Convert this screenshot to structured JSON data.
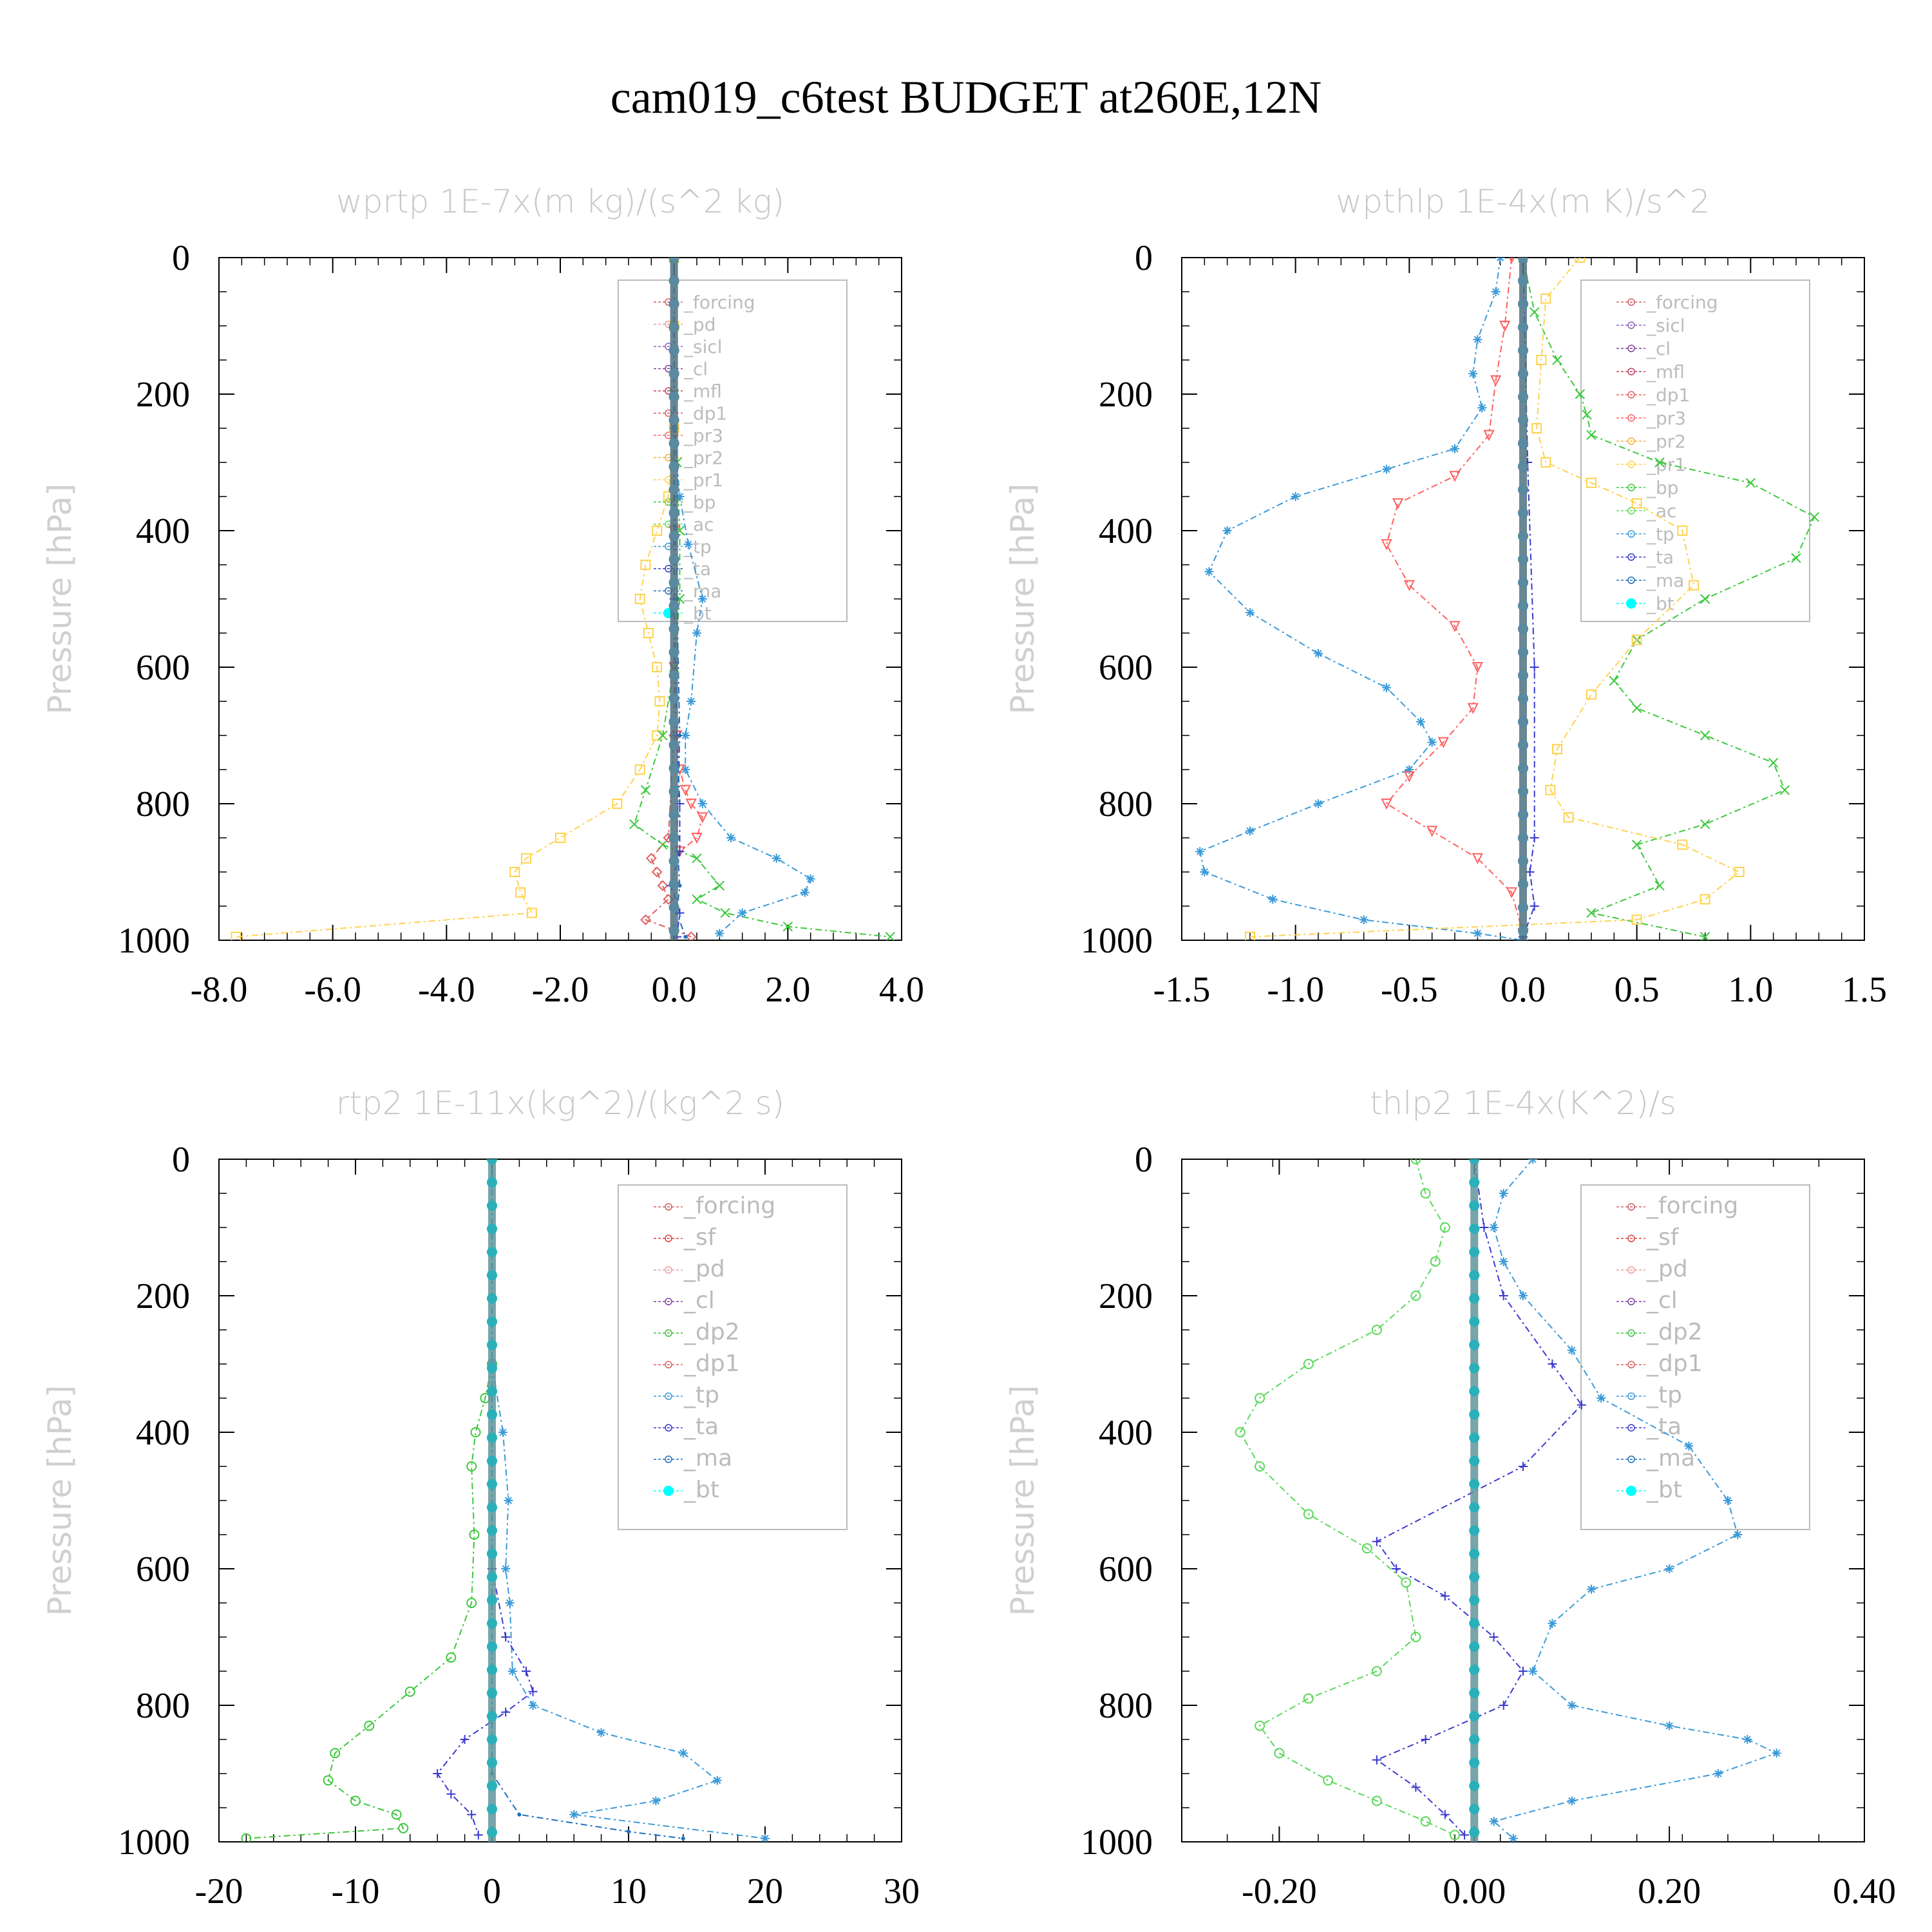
{
  "figure_title": "cam019_c6test  BUDGET at260E,12N",
  "chart_data": [
    {
      "type": "line",
      "title": "wprtp  1E-7x(m kg)/(s^2 kg)",
      "ylabel": "Pressure [hPa]",
      "xlim": [
        -8,
        4
      ],
      "ylim": [
        1000,
        0
      ],
      "xticks": [
        "-8.0",
        "-6.0",
        "-4.0",
        "-2.0",
        "0.0",
        "2.0",
        "4.0"
      ],
      "xtick_values": [
        -8,
        -6,
        -4,
        -2,
        0,
        2,
        4
      ],
      "yticks": [
        "0",
        "200",
        "400",
        "600",
        "800",
        "1000"
      ],
      "legend": [
        "_forcing",
        "_pd",
        "_sicl",
        "_cl",
        "_mfl",
        "_dp1",
        "_pr3",
        "_pr2",
        "_pr1",
        "_bp",
        "_ac",
        "_tp",
        "_ta",
        "_ma",
        "_bt"
      ],
      "series": [
        {
          "name": "_pr1",
          "color": "#ffd24d",
          "marker": "square",
          "x": [
            0,
            0,
            0,
            -0.1,
            -0.3,
            -0.5,
            -0.6,
            -0.45,
            -0.3,
            -0.25,
            -0.3,
            -0.6,
            -1.0,
            -2.0,
            -2.6,
            -2.8,
            -2.7,
            -2.5,
            -7.7
          ],
          "y": [
            0,
            100,
            250,
            350,
            400,
            450,
            500,
            550,
            600,
            650,
            700,
            750,
            800,
            850,
            880,
            900,
            930,
            960,
            995
          ]
        },
        {
          "name": "_bp",
          "color": "#3cc83c",
          "marker": "x",
          "x": [
            0,
            0,
            0.05,
            0.1,
            0.1,
            0,
            -0.2,
            -0.5,
            -0.7,
            -0.2,
            0.4,
            0.8,
            0.4,
            0.9,
            2.0,
            3.8
          ],
          "y": [
            0,
            200,
            300,
            400,
            500,
            600,
            700,
            780,
            830,
            860,
            880,
            920,
            940,
            960,
            980,
            995
          ]
        },
        {
          "name": "_tp",
          "color": "#3a9ad8",
          "marker": "star",
          "x": [
            0,
            0,
            0.1,
            0.25,
            0.5,
            0.4,
            0.3,
            0.2,
            0.2,
            0.5,
            1.0,
            1.8,
            2.4,
            2.3,
            1.2,
            0.8
          ],
          "y": [
            0,
            250,
            350,
            420,
            500,
            550,
            650,
            700,
            750,
            800,
            850,
            880,
            910,
            930,
            960,
            990
          ]
        },
        {
          "name": "_pr3",
          "color": "#ff6060",
          "marker": "triangle-down",
          "x": [
            0,
            0,
            0,
            0.05,
            0.1,
            0.2,
            0.3,
            0.5,
            0.4,
            0.1
          ],
          "y": [
            0,
            400,
            600,
            700,
            750,
            780,
            800,
            820,
            850,
            870
          ]
        },
        {
          "name": "_dp1",
          "color": "#e06060",
          "marker": "diamond",
          "x": [
            0,
            0,
            -0.1,
            -0.4,
            -0.3,
            -0.2,
            -0.1,
            -0.5,
            0,
            0.3
          ],
          "y": [
            0,
            700,
            850,
            880,
            900,
            920,
            940,
            970,
            985,
            995
          ]
        },
        {
          "name": "_ta",
          "color": "#3a3ad0",
          "marker": "plus",
          "x": [
            0,
            0,
            0.05,
            0.1,
            0.1,
            -0.05,
            0.1,
            0.05
          ],
          "y": [
            0,
            500,
            700,
            800,
            870,
            920,
            960,
            995
          ]
        },
        {
          "name": "_ma",
          "color": "#1f6fbf",
          "marker": "dot",
          "x": [
            0,
            0,
            0.05,
            0.1,
            0.05,
            0.1,
            0.05,
            0.2
          ],
          "y": [
            0,
            300,
            500,
            700,
            850,
            920,
            960,
            995
          ]
        },
        {
          "name": "_forcing",
          "color": "#333333",
          "marker": "circle",
          "x": [
            0,
            0
          ],
          "y": [
            0,
            1000
          ]
        },
        {
          "name": "_bt",
          "color": "#5a8aa0",
          "marker": "filled-circle",
          "x": [
            0,
            0
          ],
          "y": [
            0,
            1000
          ]
        }
      ]
    },
    {
      "type": "line",
      "title": "wpthlp  1E-4x(m K)/s^2",
      "ylabel": "Pressure [hPa]",
      "xlim": [
        -1.5,
        1.5
      ],
      "ylim": [
        1000,
        0
      ],
      "xticks": [
        "-1.5",
        "-1.0",
        "-0.5",
        "0.0",
        "0.5",
        "1.0",
        "1.5"
      ],
      "xtick_values": [
        -1.5,
        -1.0,
        -0.5,
        0,
        0.5,
        1.0,
        1.5
      ],
      "yticks": [
        "0",
        "200",
        "400",
        "600",
        "800",
        "1000"
      ],
      "legend": [
        "_forcing",
        "_sicl",
        "_cl",
        "_mfl",
        "_dp1",
        "_pr3",
        "_pr2",
        "_pr1",
        "_bp",
        "_ac",
        "_tp",
        "_ta",
        "_ma",
        "_bt"
      ],
      "series": [
        {
          "name": "_tp",
          "color": "#3a9ad8",
          "marker": "star",
          "x": [
            -0.1,
            -0.12,
            -0.2,
            -0.22,
            -0.18,
            -0.3,
            -0.6,
            -1.0,
            -1.3,
            -1.38,
            -1.2,
            -0.9,
            -0.6,
            -0.45,
            -0.4,
            -0.5,
            -0.9,
            -1.2,
            -1.42,
            -1.4,
            -1.1,
            -0.7,
            -0.2,
            0
          ],
          "y": [
            0,
            50,
            120,
            170,
            220,
            280,
            310,
            350,
            400,
            460,
            520,
            580,
            630,
            680,
            710,
            750,
            800,
            840,
            870,
            900,
            940,
            970,
            990,
            1000
          ]
        },
        {
          "name": "_bp",
          "color": "#3cc83c",
          "marker": "x",
          "x": [
            0,
            0.05,
            0.15,
            0.25,
            0.28,
            0.3,
            0.6,
            1.0,
            1.28,
            1.2,
            0.8,
            0.5,
            0.4,
            0.5,
            0.8,
            1.1,
            1.15,
            0.8,
            0.5,
            0.6,
            0.3,
            0.8
          ],
          "y": [
            0,
            80,
            150,
            200,
            230,
            260,
            300,
            330,
            380,
            440,
            500,
            560,
            620,
            660,
            700,
            740,
            780,
            830,
            860,
            920,
            960,
            995
          ]
        },
        {
          "name": "_pr1",
          "color": "#ffd24d",
          "marker": "square",
          "x": [
            0.25,
            0.1,
            0.08,
            0.06,
            0.1,
            0.3,
            0.5,
            0.7,
            0.75,
            0.5,
            0.3,
            0.15,
            0.12,
            0.2,
            0.7,
            0.95,
            0.8,
            0.5,
            -1.2
          ],
          "y": [
            0,
            60,
            150,
            250,
            300,
            330,
            360,
            400,
            480,
            560,
            640,
            720,
            780,
            820,
            860,
            900,
            940,
            970,
            995
          ]
        },
        {
          "name": "_pr3",
          "color": "#ff6060",
          "marker": "triangle-down",
          "x": [
            -0.05,
            -0.08,
            -0.12,
            -0.15,
            -0.3,
            -0.55,
            -0.6,
            -0.5,
            -0.3,
            -0.2,
            -0.22,
            -0.35,
            -0.5,
            -0.6,
            -0.4,
            -0.2,
            -0.05,
            0
          ],
          "y": [
            0,
            100,
            180,
            260,
            320,
            360,
            420,
            480,
            540,
            600,
            660,
            710,
            760,
            800,
            840,
            880,
            930,
            990
          ]
        },
        {
          "name": "_ta",
          "color": "#3a3ad0",
          "marker": "plus",
          "x": [
            0,
            0.02,
            0.05,
            0.05,
            0.03,
            0.05,
            0
          ],
          "y": [
            0,
            300,
            600,
            850,
            900,
            950,
            995
          ]
        },
        {
          "name": "_forcing",
          "color": "#333333",
          "marker": "circle",
          "x": [
            0,
            0
          ],
          "y": [
            0,
            1000
          ]
        },
        {
          "name": "_bt",
          "color": "#5a8aa0",
          "marker": "filled-circle",
          "x": [
            0,
            0
          ],
          "y": [
            0,
            1000
          ]
        }
      ]
    },
    {
      "type": "line",
      "title": "rtp2  1E-11x(kg^2)/(kg^2 s)",
      "ylabel": "Pressure [hPa]",
      "xlim": [
        -20,
        30
      ],
      "ylim": [
        1000,
        0
      ],
      "xticks": [
        "-20",
        "-10",
        "0",
        "10",
        "20",
        "30"
      ],
      "xtick_values": [
        -20,
        -10,
        0,
        10,
        20,
        30
      ],
      "yticks": [
        "0",
        "200",
        "400",
        "600",
        "800",
        "1000"
      ],
      "legend": [
        "_forcing",
        "_sf",
        "_pd",
        "_cl",
        "_dp2",
        "_dp1",
        "_tp",
        "_ta",
        "_ma",
        "_bt"
      ],
      "series": [
        {
          "name": "_dp1",
          "color": "#3cc83c",
          "marker": "circle",
          "x": [
            0,
            0,
            -0.5,
            -1.2,
            -1.5,
            -1.3,
            -1.5,
            -3,
            -6,
            -9,
            -11.5,
            -12,
            -10,
            -7,
            -6.5,
            -18
          ],
          "y": [
            0,
            300,
            350,
            400,
            450,
            550,
            650,
            730,
            780,
            830,
            870,
            910,
            940,
            960,
            980,
            995
          ]
        },
        {
          "name": "_tp",
          "color": "#3a9ad8",
          "marker": "star",
          "x": [
            0,
            0,
            0.8,
            1.2,
            1.0,
            1.3,
            1.5,
            3,
            8,
            14,
            16.5,
            12,
            6,
            20
          ],
          "y": [
            0,
            300,
            400,
            500,
            600,
            650,
            750,
            800,
            840,
            870,
            910,
            940,
            960,
            995
          ]
        },
        {
          "name": "_ta",
          "color": "#3a3ad0",
          "marker": "plus",
          "x": [
            0,
            0,
            1,
            2.5,
            3,
            1,
            -2,
            -4,
            -3,
            -1.5,
            -1
          ],
          "y": [
            0,
            600,
            700,
            750,
            780,
            810,
            850,
            900,
            930,
            960,
            990
          ]
        },
        {
          "name": "_ma",
          "color": "#1f6fbf",
          "marker": "dot",
          "x": [
            0,
            0,
            2,
            10,
            14
          ],
          "y": [
            0,
            900,
            960,
            985,
            995
          ]
        },
        {
          "name": "_forcing",
          "color": "#e05050",
          "marker": "diamond",
          "x": [
            0,
            0
          ],
          "y": [
            0,
            1000
          ]
        },
        {
          "name": "_bt",
          "color": "#2ab0b8",
          "marker": "filled-circle",
          "x": [
            0,
            0
          ],
          "y": [
            0,
            1000
          ]
        }
      ]
    },
    {
      "type": "line",
      "title": "thlp2  1E-4x(K^2)/s",
      "ylabel": "Pressure [hPa]",
      "xlim": [
        -0.3,
        0.4
      ],
      "ylim": [
        1000,
        0
      ],
      "xticks": [
        "-0.20",
        "0.00",
        "0.20",
        "0.40"
      ],
      "xtick_values": [
        -0.2,
        0,
        0.2,
        0.4
      ],
      "yticks": [
        "0",
        "200",
        "400",
        "600",
        "800",
        "1000"
      ],
      "legend": [
        "_forcing",
        "_sf",
        "_pd",
        "_cl",
        "_dp2",
        "_dp1",
        "_tp",
        "_ta",
        "_ma",
        "_bt"
      ],
      "series": [
        {
          "name": "_dp1",
          "color": "#5ad85a",
          "marker": "circle",
          "x": [
            -0.06,
            -0.05,
            -0.03,
            -0.04,
            -0.06,
            -0.1,
            -0.17,
            -0.22,
            -0.24,
            -0.22,
            -0.17,
            -0.11,
            -0.07,
            -0.06,
            -0.1,
            -0.17,
            -0.22,
            -0.2,
            -0.15,
            -0.1,
            -0.05,
            -0.02
          ],
          "y": [
            0,
            50,
            100,
            150,
            200,
            250,
            300,
            350,
            400,
            450,
            520,
            570,
            620,
            700,
            750,
            790,
            830,
            870,
            910,
            940,
            970,
            990
          ]
        },
        {
          "name": "_tp",
          "color": "#3a9ad8",
          "marker": "star",
          "x": [
            0.06,
            0.03,
            0.02,
            0.03,
            0.05,
            0.1,
            0.13,
            0.22,
            0.26,
            0.27,
            0.2,
            0.12,
            0.08,
            0.06,
            0.1,
            0.2,
            0.28,
            0.31,
            0.25,
            0.1,
            0.02,
            0.04
          ],
          "y": [
            0,
            50,
            100,
            150,
            200,
            280,
            350,
            420,
            500,
            550,
            600,
            630,
            680,
            750,
            800,
            830,
            850,
            870,
            900,
            940,
            970,
            995
          ]
        },
        {
          "name": "_ta",
          "color": "#3a3ad0",
          "marker": "plus",
          "x": [
            0,
            0.01,
            0.03,
            0.08,
            0.11,
            0.05,
            -0.1,
            -0.08,
            -0.03,
            0.02,
            0.05,
            0.03,
            -0.05,
            -0.1,
            -0.06,
            -0.03,
            -0.01
          ],
          "y": [
            0,
            100,
            200,
            300,
            360,
            450,
            560,
            600,
            640,
            700,
            750,
            800,
            850,
            880,
            920,
            960,
            990
          ]
        },
        {
          "name": "_forcing",
          "color": "#e05050",
          "marker": "diamond",
          "x": [
            0,
            0
          ],
          "y": [
            0,
            1000
          ]
        },
        {
          "name": "_bt",
          "color": "#2ab0b8",
          "marker": "filled-circle",
          "x": [
            0,
            0
          ],
          "y": [
            0,
            1000
          ]
        }
      ]
    }
  ]
}
